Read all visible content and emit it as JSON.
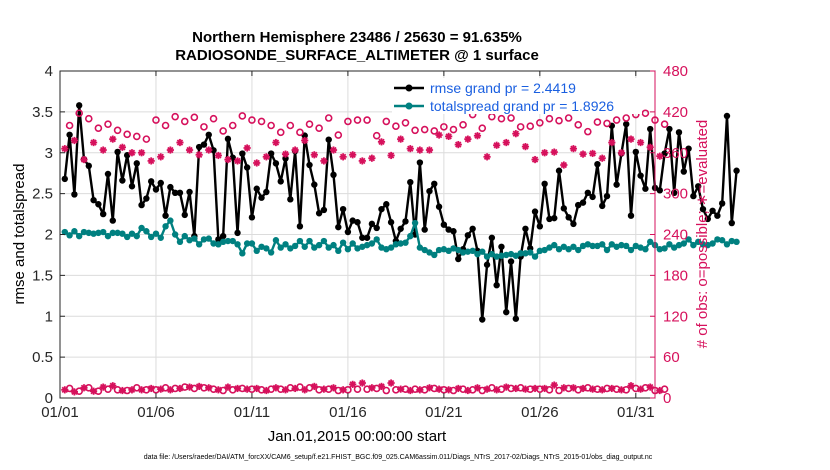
{
  "chart_data": {
    "type": "line",
    "title_line1": "Northern Hemisphere 23486 / 25630 = 91.635%",
    "title_line2": "RADIOSONDE_SURFACE_ALTIMETER @ 1 surface",
    "xlabel": "Jan.01,2015 00:00:00 start",
    "ylabel_left": "rmse and totalspread",
    "ylabel_right": "# of obs: o=possible; ∗=evaluated",
    "footer": "data file: /Users/raeder/DAI/ATM_forcXX/CAM6_setup/f.e21.FHIST_BGC.f09_025.CAM6assim.011/Diags_NTrS_2017-02/Diags_NTrS_2015-01/obs_diag_output.nc",
    "grid": true,
    "xlim": [
      1,
      32
    ],
    "ylim_left": [
      0,
      4
    ],
    "ylim_right": [
      0,
      480
    ],
    "x_ticks": [
      1,
      6,
      11,
      16,
      21,
      26,
      31
    ],
    "x_tick_labels": [
      "01/01",
      "01/06",
      "01/11",
      "01/16",
      "01/21",
      "01/26",
      "01/31"
    ],
    "y_left_ticks": [
      0,
      0.5,
      1,
      1.5,
      2,
      2.5,
      3,
      3.5,
      4
    ],
    "y_left_tick_labels": [
      "0",
      "0.5",
      "1",
      "1.5",
      "2",
      "2.5",
      "3",
      "3.5",
      "4"
    ],
    "y_right_ticks": [
      0,
      60,
      120,
      180,
      240,
      300,
      360,
      420,
      480
    ],
    "y_right_tick_labels": [
      "0",
      "60",
      "120",
      "180",
      "240",
      "300",
      "360",
      "420",
      "480"
    ],
    "x_start": 1.25,
    "x_step": 0.25,
    "series": [
      {
        "name": "rmse grand pr = 2.4419",
        "color": "#000000",
        "marker": "filled-circle",
        "axis": "left",
        "values": [
          2.68,
          3.22,
          2.49,
          3.58,
          2.92,
          2.84,
          2.42,
          2.37,
          2.25,
          2.74,
          2.17,
          3.01,
          2.66,
          2.97,
          2.59,
          2.87,
          2.36,
          2.44,
          2.65,
          2.55,
          2.63,
          2.23,
          2.58,
          2.51,
          2.51,
          2.24,
          2.52,
          1.98,
          3.07,
          3.1,
          3.22,
          3.03,
          1.94,
          1.98,
          3.17,
          2.94,
          2.02,
          2.99,
          2.82,
          2.21,
          2.56,
          2.45,
          2.52,
          2.99,
          2.87,
          2.65,
          2.93,
          2.43,
          3.02,
          2.1,
          3.21,
          2.85,
          2.61,
          2.26,
          2.3,
          3.16,
          2.73,
          2.09,
          2.31,
          2.03,
          2.17,
          2.15,
          1.96,
          1.96,
          2.13,
          2.08,
          2.31,
          2.37,
          2.15,
          1.92,
          2.07,
          2.16,
          2.64,
          2.0,
          2.88,
          2.06,
          2.53,
          2.62,
          2.34,
          2.12,
          2.06,
          2.04,
          1.7,
          1.82,
          1.99,
          2.07,
          1.8,
          0.96,
          1.63,
          1.96,
          1.38,
          1.85,
          1.05,
          1.67,
          0.97,
          1.73,
          2.07,
          1.83,
          2.28,
          2.1,
          2.62,
          2.19,
          2.2,
          2.78,
          2.32,
          2.21,
          2.13,
          2.36,
          2.39,
          2.51,
          2.46,
          2.86,
          2.35,
          2.47,
          3.33,
          2.61,
          2.99,
          3.35,
          2.23,
          3.01,
          2.72,
          2.56,
          3.29,
          2.57,
          2.54,
          2.99,
          3.29,
          2.51,
          3.25,
          2.77,
          3.05,
          2.47,
          2.59,
          2.31,
          2.19,
          2.29,
          2.23,
          2.38,
          3.45,
          2.14,
          2.78
        ]
      },
      {
        "name": "totalspread grand pr = 1.8926",
        "color": "#008080",
        "marker": "filled-circle",
        "axis": "left",
        "values": [
          2.03,
          1.99,
          2.04,
          1.98,
          2.03,
          2.02,
          2.01,
          2.02,
          2.03,
          1.98,
          2.02,
          2.02,
          2.01,
          1.97,
          2.01,
          1.98,
          2.08,
          2.04,
          1.97,
          2.01,
          1.96,
          2.1,
          2.17,
          2.0,
          1.91,
          1.98,
          1.93,
          1.95,
          1.88,
          1.94,
          1.95,
          1.89,
          1.88,
          1.91,
          1.92,
          1.92,
          1.88,
          1.77,
          1.89,
          1.89,
          1.8,
          1.85,
          1.83,
          1.78,
          1.93,
          1.84,
          1.88,
          1.83,
          1.86,
          1.92,
          1.85,
          1.92,
          1.84,
          1.87,
          1.92,
          1.84,
          1.87,
          1.8,
          1.9,
          1.82,
          1.89,
          1.83,
          1.85,
          1.87,
          1.89,
          1.94,
          1.84,
          1.82,
          1.84,
          1.88,
          1.89,
          1.9,
          1.98,
          2.14,
          1.84,
          1.81,
          1.78,
          1.75,
          1.81,
          1.82,
          1.8,
          1.83,
          1.81,
          1.78,
          1.79,
          1.8,
          1.76,
          1.79,
          1.73,
          1.76,
          1.73,
          1.74,
          1.75,
          1.76,
          1.74,
          1.77,
          1.77,
          1.78,
          1.73,
          1.8,
          1.81,
          1.84,
          1.87,
          1.82,
          1.85,
          1.82,
          1.85,
          1.81,
          1.86,
          1.88,
          1.86,
          1.86,
          1.88,
          1.81,
          1.88,
          1.85,
          1.87,
          1.86,
          1.81,
          1.86,
          1.84,
          1.82,
          1.91,
          1.87,
          1.82,
          1.83,
          1.88,
          1.84,
          1.87,
          1.89,
          1.94,
          1.87,
          1.91,
          1.88,
          1.87,
          1.89,
          1.94,
          1.93,
          1.88,
          1.92,
          1.91
        ]
      },
      {
        "name": "possible",
        "color": "#d6115c",
        "marker": "open-circle",
        "axis": "right",
        "x_start": 1.5,
        "x_step": 0.5,
        "values": [
          400,
          418,
          410,
          396,
          402,
          393,
          387,
          384,
          380,
          408,
          400,
          413,
          406,
          412,
          398,
          410,
          392,
          400,
          414,
          408,
          406,
          400,
          390,
          400,
          390,
          402,
          396,
          411,
          386,
          406,
          408,
          408,
          385,
          406,
          399,
          404,
          393,
          394,
          392,
          398,
          394,
          401,
          416,
          396,
          413,
          410,
          411,
          398,
          399,
          404,
          410,
          407,
          411,
          401,
          391,
          405,
          403,
          408,
          411,
          416,
          418,
          408,
          402
        ]
      },
      {
        "name": "evaluated",
        "color": "#d6115c",
        "marker": "asterisk",
        "axis": "right",
        "x_start": 1.25,
        "x_step": 0.5,
        "values": [
          366,
          378,
          350,
          375,
          364,
          380,
          368,
          360,
          360,
          348,
          354,
          364,
          375,
          364,
          357,
          364,
          356,
          350,
          348,
          367,
          345,
          354,
          375,
          358,
          364,
          378,
          357,
          348,
          364,
          354,
          357,
          348,
          352,
          376,
          356,
          380,
          366,
          364,
          364,
          386,
          384,
          372,
          380,
          385,
          354,
          371,
          375,
          388,
          369,
          350,
          360,
          361,
          342,
          366,
          358,
          359,
          352,
          375,
          360,
          380,
          375,
          368,
          355
        ]
      },
      {
        "name": "possible-low",
        "color": "#d6115c",
        "marker": "open-circle",
        "axis": "right",
        "x_start": 1.5,
        "x_step": 0.5,
        "values": [
          14,
          10,
          15,
          10,
          13,
          12,
          11,
          15,
          12,
          12,
          15,
          14,
          16,
          14,
          15,
          13,
          11,
          12,
          14,
          13,
          12,
          13,
          13,
          15,
          16,
          15,
          12,
          13,
          11,
          12,
          13,
          13,
          14,
          11,
          12,
          13,
          13,
          12,
          14,
          12,
          11,
          13,
          12,
          11,
          15,
          13,
          14,
          15,
          13,
          13,
          12,
          11,
          14,
          12,
          15,
          13,
          14,
          13,
          12,
          14,
          15,
          11,
          13
        ]
      },
      {
        "name": "evaluated-low",
        "color": "#d6115c",
        "marker": "asterisk",
        "axis": "right",
        "x_start": 1.25,
        "x_step": 0.5,
        "values": [
          12,
          9,
          15,
          10,
          16,
          18,
          11,
          12,
          12,
          14,
          13,
          12,
          14,
          16,
          17,
          15,
          12,
          16,
          14,
          13,
          14,
          11,
          15,
          12,
          14,
          12,
          17,
          13,
          15,
          12,
          20,
          22,
          15,
          17,
          22,
          13,
          11,
          12,
          15,
          13,
          12,
          14,
          11,
          15,
          13,
          12,
          16,
          14,
          13,
          14,
          14,
          19,
          15,
          15,
          14,
          13,
          12,
          14,
          12,
          18,
          13,
          16,
          11
        ]
      }
    ],
    "legend": [
      {
        "label": "rmse grand pr = 2.4419",
        "color": "#000000"
      },
      {
        "label": "totalspread grand pr = 1.8926",
        "color": "#008080"
      }
    ],
    "legend_placement": "top-right",
    "right_axis_color": "#d6115c"
  }
}
